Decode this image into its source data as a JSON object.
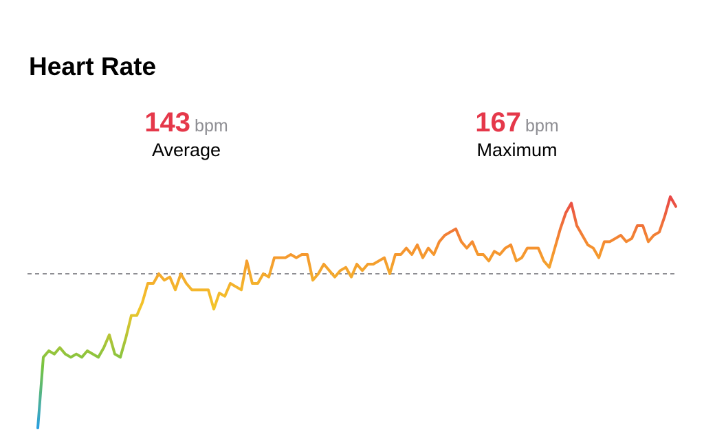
{
  "chart_data": {
    "type": "line",
    "title": "Heart Rate",
    "summary": [
      {
        "value": 143,
        "unit": "bpm",
        "label": "Average"
      },
      {
        "value": 167,
        "unit": "bpm",
        "label": "Maximum"
      }
    ],
    "values": [
      95,
      117,
      119,
      118,
      120,
      118,
      117,
      118,
      117,
      119,
      118,
      117,
      120,
      124,
      118,
      117,
      123,
      130,
      130,
      134,
      140,
      140,
      143,
      141,
      142,
      138,
      143,
      140,
      138,
      138,
      138,
      138,
      132,
      137,
      136,
      140,
      139,
      138,
      147,
      140,
      140,
      143,
      142,
      148,
      148,
      148,
      149,
      148,
      149,
      149,
      141,
      143,
      146,
      144,
      142,
      144,
      145,
      142,
      146,
      144,
      146,
      146,
      147,
      148,
      143,
      149,
      149,
      151,
      149,
      152,
      148,
      151,
      149,
      153,
      155,
      156,
      157,
      153,
      151,
      153,
      149,
      149,
      147,
      150,
      149,
      151,
      152,
      147,
      148,
      151,
      151,
      151,
      147,
      145,
      151,
      157,
      162,
      165,
      158,
      155,
      152,
      151,
      148,
      153,
      153,
      154,
      155,
      153,
      154,
      158,
      158,
      153,
      155,
      156,
      161,
      167,
      164
    ],
    "ylim": [
      95,
      170
    ],
    "reference": "summary.0",
    "gradient": [
      "#2a9fe0",
      "#74c442",
      "#f3c52a",
      "#f5922f",
      "#e6394b"
    ]
  }
}
